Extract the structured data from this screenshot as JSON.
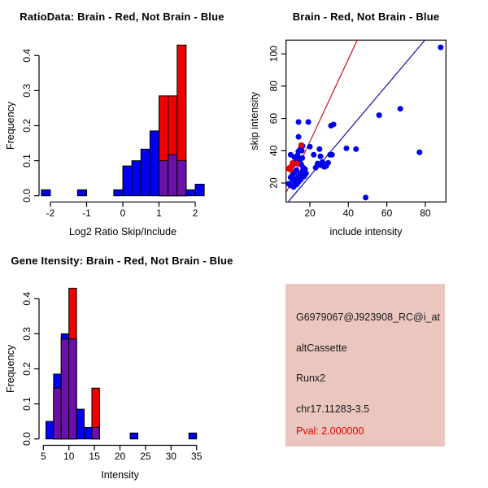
{
  "colors": {
    "blue": "#0000EE",
    "red": "#EE0000",
    "purple": "#6B10A8",
    "red_line": "#CC2233",
    "blue_line": "#2222AA",
    "axis": "#000000",
    "info_bg": "#EAC6BE",
    "info_text": "#1A1A1A",
    "pval_red": "#E00000"
  },
  "chart_data": [
    {
      "type": "bar",
      "subtype": "overlaid-histograms",
      "title": "RatioData: Brain - Red, Not Brain - Blue",
      "xlabel": "Log2 Ratio Skip/Include",
      "ylabel": "Frequency",
      "xlim": [
        -2.35,
        2.3
      ],
      "ylim": [
        0,
        0.43
      ],
      "xticks": [
        -2,
        -1,
        0,
        1,
        2
      ],
      "yticks": [
        0,
        0.1,
        0.2,
        0.3,
        0.4
      ],
      "legend_note": "blue = Not Brain, red = Brain, purple = overlap",
      "bars": [
        {
          "x0": -2.25,
          "x1": -2.0,
          "blue": 0.017,
          "red": 0
        },
        {
          "x0": -1.25,
          "x1": -1.0,
          "blue": 0.017,
          "red": 0
        },
        {
          "x0": -0.25,
          "x1": 0.0,
          "blue": 0.017,
          "red": 0
        },
        {
          "x0": 0.0,
          "x1": 0.25,
          "blue": 0.085,
          "red": 0
        },
        {
          "x0": 0.25,
          "x1": 0.5,
          "blue": 0.1,
          "red": 0
        },
        {
          "x0": 0.5,
          "x1": 0.75,
          "blue": 0.133,
          "red": 0
        },
        {
          "x0": 0.75,
          "x1": 1.0,
          "blue": 0.185,
          "red": 0
        },
        {
          "x0": 1.0,
          "x1": 1.25,
          "blue": 0.1,
          "red": 0.285
        },
        {
          "x0": 1.25,
          "x1": 1.5,
          "blue": 0.117,
          "red": 0.285
        },
        {
          "x0": 1.5,
          "x1": 1.75,
          "blue": 0.1,
          "red": 0.43
        },
        {
          "x0": 1.75,
          "x1": 2.0,
          "blue": 0.017,
          "red": 0
        },
        {
          "x0": 2.0,
          "x1": 2.25,
          "blue": 0.033,
          "red": 0
        }
      ]
    },
    {
      "type": "scatter",
      "title": "Brain - Red, Not Brain - Blue",
      "xlabel": "include intensity",
      "ylabel": "skip intensity",
      "xlim": [
        7.55,
        90.7
      ],
      "ylim": [
        8.27,
        108.5
      ],
      "xticks": [
        20,
        40,
        60,
        80
      ],
      "yticks": [
        20,
        40,
        60,
        80,
        100
      ],
      "red_line": {
        "x1": 7.55,
        "y1": 13.7,
        "x2": 44.6,
        "y2": 108.5
      },
      "blue_line": {
        "x1": 8.7,
        "y1": 8.3,
        "x2": 79.8,
        "y2": 108.5
      },
      "blue_points": [
        [
          88,
          104
        ],
        [
          67,
          66
        ],
        [
          56,
          62
        ],
        [
          77,
          39
        ],
        [
          49,
          11
        ],
        [
          44,
          41
        ],
        [
          39,
          41.5
        ],
        [
          31,
          55.5
        ],
        [
          32.3,
          56.3
        ],
        [
          31.5,
          37.5
        ],
        [
          25,
          41
        ],
        [
          19.2,
          57.8
        ],
        [
          14.1,
          57.8
        ],
        [
          14.1,
          48.6
        ],
        [
          20,
          42.5
        ],
        [
          16.2,
          43
        ],
        [
          25.5,
          36.5
        ],
        [
          22,
          37.5
        ],
        [
          24,
          32
        ],
        [
          25.5,
          31
        ],
        [
          26.5,
          33
        ],
        [
          27.5,
          30
        ],
        [
          28.5,
          30.5
        ],
        [
          29.5,
          32.5
        ],
        [
          23,
          29.5
        ],
        [
          30.5,
          37.5
        ],
        [
          10,
          37.5
        ],
        [
          12,
          36
        ],
        [
          13.5,
          37
        ],
        [
          14,
          39.5
        ],
        [
          15,
          41
        ],
        [
          15.8,
          40
        ],
        [
          13,
          34
        ],
        [
          12,
          32.5
        ],
        [
          11,
          31
        ],
        [
          14,
          33
        ],
        [
          15,
          34.5
        ],
        [
          16,
          35.5
        ],
        [
          15.5,
          31.5
        ],
        [
          16.5,
          29.5
        ],
        [
          17.5,
          28.5
        ],
        [
          13,
          28
        ],
        [
          12,
          26.5
        ],
        [
          11,
          25
        ],
        [
          10,
          23.5
        ],
        [
          11,
          22
        ],
        [
          12,
          21
        ],
        [
          13,
          22.5
        ],
        [
          14,
          24
        ],
        [
          15,
          25.5
        ],
        [
          16,
          27
        ],
        [
          9,
          19.5
        ],
        [
          10,
          18.5
        ],
        [
          11.5,
          17.5
        ],
        [
          13,
          19
        ],
        [
          14,
          20.5
        ],
        [
          15.2,
          22
        ],
        [
          17,
          24
        ],
        [
          18,
          26
        ]
      ],
      "red_points": [
        [
          15.5,
          43.5
        ],
        [
          13.2,
          32
        ],
        [
          11,
          32.5
        ],
        [
          10.4,
          30.4
        ],
        [
          9,
          28.8
        ],
        [
          10,
          28.2
        ],
        [
          9.5,
          29.5
        ]
      ]
    },
    {
      "type": "bar",
      "subtype": "overlaid-histograms",
      "title": "Gene Itensity: Brain - Red, Not Brain - Blue",
      "xlabel": "Intensity",
      "ylabel": "Frequency",
      "xlim": [
        4.5,
        35.5
      ],
      "ylim": [
        0,
        0.43
      ],
      "xticks": [
        5,
        10,
        15,
        20,
        25,
        30,
        35
      ],
      "yticks": [
        0,
        0.1,
        0.2,
        0.3,
        0.4
      ],
      "legend_note": "blue = Not Brain, red = Brain, purple = overlap",
      "bars": [
        {
          "x0": 5.5,
          "x1": 7.0,
          "blue": 0.05,
          "red": 0
        },
        {
          "x0": 7.0,
          "x1": 8.5,
          "blue": 0.185,
          "red": 0.145
        },
        {
          "x0": 8.5,
          "x1": 10.0,
          "blue": 0.3,
          "red": 0.285
        },
        {
          "x0": 10.0,
          "x1": 11.5,
          "blue": 0.285,
          "red": 0.43
        },
        {
          "x0": 11.5,
          "x1": 13.0,
          "blue": 0.085,
          "red": 0
        },
        {
          "x0": 13.0,
          "x1": 14.5,
          "blue": 0.033,
          "red": 0
        },
        {
          "x0": 14.5,
          "x1": 16.0,
          "blue": 0.033,
          "red": 0.145
        },
        {
          "x0": 22.0,
          "x1": 23.5,
          "blue": 0.017,
          "red": 0
        },
        {
          "x0": 33.5,
          "x1": 35.0,
          "blue": 0.017,
          "red": 0
        }
      ]
    }
  ],
  "info_panel": {
    "probe_id": "G6979067@J923908_RC@i_at",
    "event_type": "altCassette",
    "gene": "Runx2",
    "location": "chr17.11283-3.5",
    "pval": "Pval: 2.000000"
  }
}
